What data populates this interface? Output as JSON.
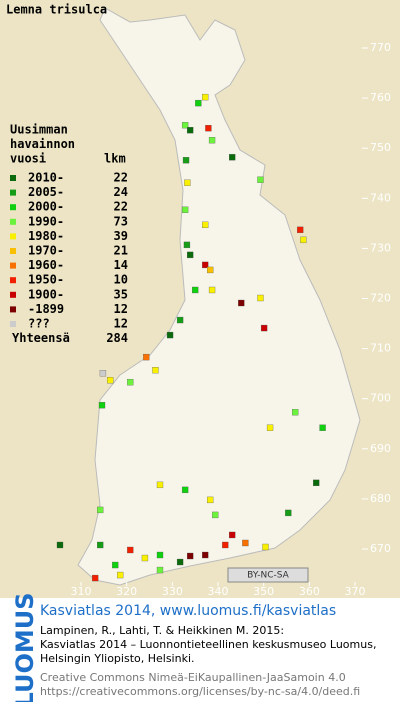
{
  "title": "Lemna trisulca",
  "legend": {
    "heading": [
      "Uusimman",
      "havainnon",
      "vuosi"
    ],
    "count_heading": "lkm",
    "rows": [
      {
        "label": "2010-",
        "count": 22,
        "color": "#0b6a0b"
      },
      {
        "label": "2005-",
        "count": 24,
        "color": "#169c16"
      },
      {
        "label": "2000-",
        "count": 22,
        "color": "#10d010"
      },
      {
        "label": "1990-",
        "count": 73,
        "color": "#6cf23c"
      },
      {
        "label": "1980-",
        "count": 39,
        "color": "#f8f000"
      },
      {
        "label": "1970-",
        "count": 21,
        "color": "#f8c000"
      },
      {
        "label": "1960-",
        "count": 14,
        "color": "#f87000"
      },
      {
        "label": "1950-",
        "count": 10,
        "color": "#f02000"
      },
      {
        "label": "1900-",
        "count": 35,
        "color": "#c80000"
      },
      {
        "label": "-1899",
        "count": 12,
        "color": "#7c0000"
      },
      {
        "label": "???",
        "count": 12,
        "color": "#cccccc"
      }
    ],
    "total_label": "Yhteensä",
    "total": 284
  },
  "xlim": [
    310,
    370
  ],
  "xticks": [
    310,
    320,
    330,
    340,
    350,
    360,
    370
  ],
  "ylim": [
    670,
    770
  ],
  "yticks": [
    670,
    680,
    690,
    700,
    710,
    720,
    730,
    740,
    750,
    760,
    770
  ],
  "points": [
    {
      "x": 337.2,
      "y": 760.2,
      "period": "1980-"
    },
    {
      "x": 335.7,
      "y": 759,
      "period": "2000-"
    },
    {
      "x": 332.8,
      "y": 754.6,
      "period": "1990-"
    },
    {
      "x": 333.9,
      "y": 753.6,
      "period": "2010-"
    },
    {
      "x": 337.9,
      "y": 754,
      "period": "1950-"
    },
    {
      "x": 338.7,
      "y": 751.6,
      "period": "1990-"
    },
    {
      "x": 343.1,
      "y": 748.2,
      "period": "2010-"
    },
    {
      "x": 333,
      "y": 747.6,
      "period": "2005-"
    },
    {
      "x": 333.3,
      "y": 743.1,
      "period": "1980-"
    },
    {
      "x": 349.3,
      "y": 743.7,
      "period": "1990-"
    },
    {
      "x": 332.8,
      "y": 737.7,
      "period": "1990-"
    },
    {
      "x": 337.2,
      "y": 734.7,
      "period": "1980-"
    },
    {
      "x": 358,
      "y": 733.7,
      "period": "1950-"
    },
    {
      "x": 358.7,
      "y": 731.7,
      "period": "1980-"
    },
    {
      "x": 333.2,
      "y": 730.7,
      "period": "2005-"
    },
    {
      "x": 333.9,
      "y": 728.7,
      "period": "2010-"
    },
    {
      "x": 337.2,
      "y": 726.7,
      "period": "1900-"
    },
    {
      "x": 338.3,
      "y": 725.7,
      "period": "1970-"
    },
    {
      "x": 335,
      "y": 721.7,
      "period": "2000-"
    },
    {
      "x": 338.7,
      "y": 721.7,
      "period": "1980-"
    },
    {
      "x": 345.1,
      "y": 719.1,
      "period": "-1899"
    },
    {
      "x": 349.3,
      "y": 720.1,
      "period": "1980-"
    },
    {
      "x": 350.1,
      "y": 714.1,
      "period": "1900-"
    },
    {
      "x": 331.7,
      "y": 715.7,
      "period": "2005-"
    },
    {
      "x": 329.5,
      "y": 712.7,
      "period": "2010-"
    },
    {
      "x": 324.3,
      "y": 708.3,
      "period": "1960-"
    },
    {
      "x": 326.3,
      "y": 705.7,
      "period": "1980-"
    },
    {
      "x": 316.4,
      "y": 703.7,
      "period": "1980-"
    },
    {
      "x": 320.8,
      "y": 703.3,
      "period": "1990-"
    },
    {
      "x": 314.6,
      "y": 698.7,
      "period": "2000-"
    },
    {
      "x": 314.8,
      "y": 705.1,
      "period": "???"
    },
    {
      "x": 356.9,
      "y": 697.3,
      "period": "1990-"
    },
    {
      "x": 362.9,
      "y": 694.2,
      "period": "2000-"
    },
    {
      "x": 351.4,
      "y": 694.2,
      "period": "1980-"
    },
    {
      "x": 327.3,
      "y": 682.8,
      "period": "1980-"
    },
    {
      "x": 332.8,
      "y": 681.8,
      "period": "2000-"
    },
    {
      "x": 338.3,
      "y": 679.8,
      "period": "1980-"
    },
    {
      "x": 339.4,
      "y": 676.8,
      "period": "1990-"
    },
    {
      "x": 314.2,
      "y": 677.8,
      "period": "1990-"
    },
    {
      "x": 355.4,
      "y": 677.2,
      "period": "2005-"
    },
    {
      "x": 361.5,
      "y": 683.2,
      "period": "2010-"
    },
    {
      "x": 305.4,
      "y": 670.8,
      "period": "2010-"
    },
    {
      "x": 314.2,
      "y": 670.8,
      "period": "2005-"
    },
    {
      "x": 320.8,
      "y": 669.8,
      "period": "1950-"
    },
    {
      "x": 324,
      "y": 668.2,
      "period": "1980-"
    },
    {
      "x": 327.3,
      "y": 668.8,
      "period": "2000-"
    },
    {
      "x": 333.9,
      "y": 668.6,
      "period": "-1899"
    },
    {
      "x": 337.2,
      "y": 668.8,
      "period": "-1899"
    },
    {
      "x": 341.6,
      "y": 670.8,
      "period": "1950-"
    },
    {
      "x": 346,
      "y": 671.2,
      "period": "1960-"
    },
    {
      "x": 350.4,
      "y": 670.4,
      "period": "1980-"
    },
    {
      "x": 317.5,
      "y": 666.8,
      "period": "2000-"
    },
    {
      "x": 313.1,
      "y": 664.2,
      "period": "1950-"
    },
    {
      "x": 318.6,
      "y": 664.8,
      "period": "1980-"
    },
    {
      "x": 327.3,
      "y": 665.8,
      "period": "1990-"
    },
    {
      "x": 331.7,
      "y": 667.4,
      "period": "2010-"
    },
    {
      "x": 343.1,
      "y": 672.8,
      "period": "1900-"
    }
  ],
  "license_badge": "BY-NC-SA",
  "footer": {
    "brand": "LUOMUS",
    "headline": "Kasviatlas 2014, www.luomus.fi/kasviatlas",
    "citation": [
      "Lampinen, R., Lahti, T. & Heikkinen M. 2015:",
      "Kasviatlas 2014 – Luonnontieteellinen keskusmuseo Luomus,",
      "Helsingin Yliopisto, Helsinki."
    ],
    "license": [
      "Creative Commons Nimeä-EiKaupallinen-JaaSamoin 4.0",
      "https://creativecommons.org/licenses/by-nc-sa/4.0/deed.fi"
    ]
  }
}
